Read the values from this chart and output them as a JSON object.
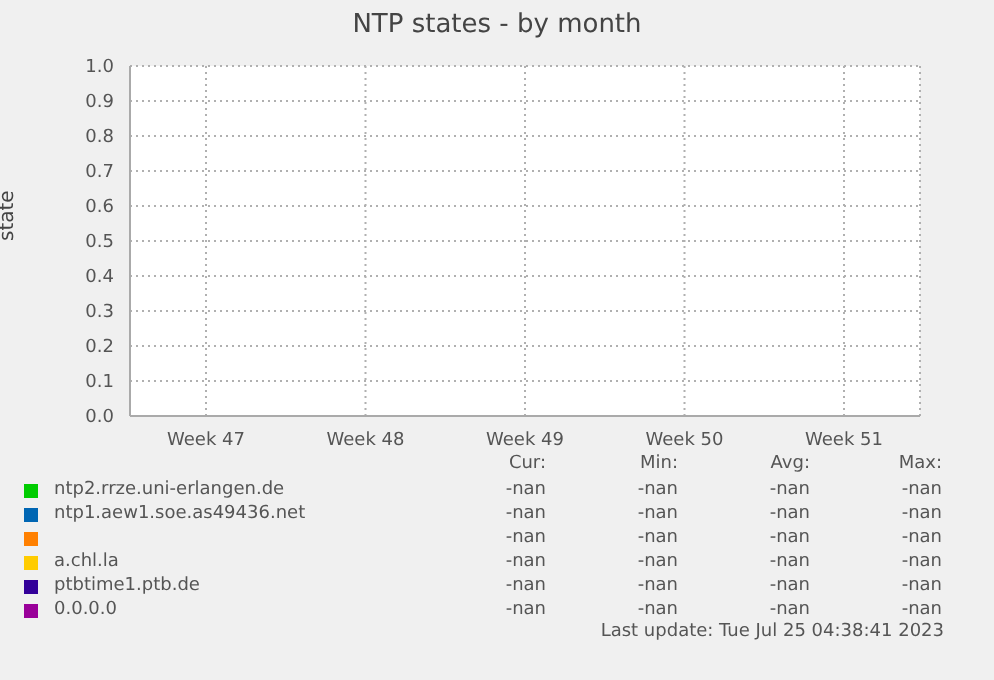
{
  "chart_data": {
    "type": "line",
    "title": "NTP states - by month",
    "ylabel": "state",
    "categories": [
      "Week 47",
      "Week 48",
      "Week 49",
      "Week 50",
      "Week 51"
    ],
    "ylim": [
      0,
      1
    ],
    "yticks": [
      {
        "value": 0,
        "label": "0.0"
      },
      {
        "value": 0.1,
        "label": "0.1"
      },
      {
        "value": 0.2,
        "label": "0.2"
      },
      {
        "value": 0.3,
        "label": "0.3"
      },
      {
        "value": 0.4,
        "label": "0.4"
      },
      {
        "value": 0.5,
        "label": "0.5"
      },
      {
        "value": 0.6,
        "label": "0.6"
      },
      {
        "value": 0.7,
        "label": "0.7"
      },
      {
        "value": 0.8,
        "label": "0.8"
      },
      {
        "value": 0.9,
        "label": "0.9"
      },
      {
        "value": 1,
        "label": "1.0"
      }
    ],
    "grid": true,
    "legend": "bottom",
    "series": [
      {
        "name": "ntp2.rrze.uni-erlangen.de",
        "color": "#00cc00",
        "values": [
          null,
          null,
          null,
          null,
          null
        ]
      },
      {
        "name": "ntp1.aew1.soe.as49436.net",
        "color": "#0066b3",
        "values": [
          null,
          null,
          null,
          null,
          null
        ]
      },
      {
        "color": "#ff8000",
        "values": [
          null,
          null,
          null,
          null,
          null
        ]
      },
      {
        "name": "a.chl.la",
        "color": "#ffcc00",
        "values": [
          null,
          null,
          null,
          null,
          null
        ]
      },
      {
        "name": "ptbtime1.ptb.de",
        "color": "#330099",
        "values": [
          null,
          null,
          null,
          null,
          null
        ]
      },
      {
        "name": "0.0.0.0",
        "color": "#990099",
        "values": [
          null,
          null,
          null,
          null,
          null
        ]
      }
    ],
    "annotations": [
      "Cur:",
      "Min:",
      "Avg:",
      "Max:",
      "-nan",
      "-nan",
      "-nan",
      "-nan",
      "-nan",
      "-nan",
      "-nan",
      "-nan",
      "-nan",
      "-nan",
      "-nan",
      "-nan",
      "-nan",
      "-nan",
      "-nan",
      "-nan",
      "-nan",
      "-nan",
      "-nan",
      "-nan",
      "-nan",
      "-nan",
      "-nan",
      "-nan",
      "Last update: Tue Jul 25 04:38:41 2023"
    ]
  }
}
